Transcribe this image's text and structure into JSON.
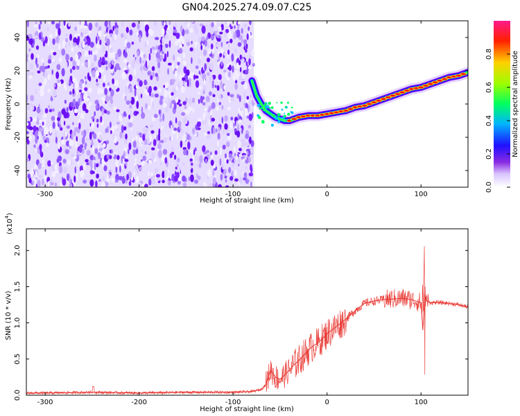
{
  "title": "GN04.2025.274.09.07.C25",
  "chart_data": [
    {
      "type": "heatmap",
      "xlabel": "Height of straight line (km)",
      "ylabel": "Frequency (Hz)",
      "xlim": [
        -320,
        150
      ],
      "ylim": [
        -50,
        50
      ],
      "x_ticks": [
        -300,
        -200,
        -100,
        0,
        100
      ],
      "x_tick_labels": [
        "-300",
        "-200",
        "-100",
        "0",
        "100"
      ],
      "y_ticks": [
        -40,
        -20,
        0,
        20,
        40
      ],
      "y_tick_labels": [
        "-40",
        "-20",
        "0",
        "20",
        "40"
      ],
      "colorbar": {
        "label": "Normalized spectral amplitude",
        "range": [
          0,
          1
        ],
        "ticks": [
          0,
          0.2,
          0.4,
          0.6,
          0.8
        ],
        "tick_labels": [
          "0.0",
          "0.2",
          "0.4",
          "0.6",
          "0.8"
        ],
        "colormap": [
          "#ffffff",
          "#b388ff",
          "#6a00ff",
          "#0000ff",
          "#00c8ff",
          "#00ff40",
          "#c8ff00",
          "#ffc800",
          "#ff0000",
          "#ff1a8c"
        ]
      },
      "noise_region_x": [
        -320,
        -78
      ],
      "ridge": {
        "x": [
          -80,
          -75,
          -70,
          -65,
          -60,
          -55,
          -50,
          -45,
          -40,
          -30,
          -20,
          -10,
          0,
          10,
          20,
          30,
          40,
          50,
          60,
          70,
          80,
          90,
          100,
          110,
          120,
          130,
          140,
          150
        ],
        "y": [
          14,
          5,
          0,
          -4,
          -6,
          -8,
          -9,
          -10,
          -10,
          -8,
          -7,
          -7,
          -6,
          -5,
          -4,
          -2,
          -1,
          1,
          3,
          5,
          7,
          9,
          10,
          12,
          14,
          16,
          17,
          19
        ]
      },
      "grid": false
    },
    {
      "type": "line",
      "xlabel": "Height of straight line (km)",
      "ylabel": "SNR (10 * v/v)",
      "y_multiplier": "(x10",
      "y_multiplier_exp": "4",
      "y_multiplier_close": ")",
      "xlim": [
        -320,
        150
      ],
      "ylim": [
        0,
        2.3
      ],
      "x_ticks": [
        -300,
        -200,
        -100,
        0,
        100
      ],
      "x_tick_labels": [
        "-300",
        "-200",
        "-100",
        "0",
        "100"
      ],
      "y_ticks": [
        0,
        0.5,
        1.0,
        1.5,
        2.0
      ],
      "y_tick_labels": [
        "0.0",
        "0.5",
        "1.0",
        "1.5",
        "2.0"
      ],
      "series": [
        {
          "color": "#e8302a",
          "x": [
            -320,
            -300,
            -250,
            -200,
            -150,
            -100,
            -80,
            -70,
            -65,
            -60,
            -55,
            -50,
            -45,
            -40,
            -35,
            -30,
            -25,
            -20,
            -15,
            -10,
            -5,
            0,
            5,
            10,
            20,
            30,
            40,
            50,
            60,
            70,
            80,
            90,
            95,
            100,
            102,
            104,
            106,
            110,
            120,
            130,
            140,
            150
          ],
          "y": [
            0.03,
            0.03,
            0.04,
            0.03,
            0.04,
            0.04,
            0.05,
            0.08,
            0.15,
            0.35,
            0.25,
            0.22,
            0.28,
            0.35,
            0.42,
            0.48,
            0.55,
            0.62,
            0.68,
            0.72,
            0.78,
            0.85,
            0.9,
            0.95,
            1.05,
            1.17,
            1.27,
            1.3,
            1.32,
            1.33,
            1.34,
            1.32,
            1.3,
            1.28,
            0.9,
            1.4,
            1.3,
            1.28,
            1.28,
            1.27,
            1.25,
            1.22
          ]
        }
      ],
      "grid": false
    }
  ]
}
